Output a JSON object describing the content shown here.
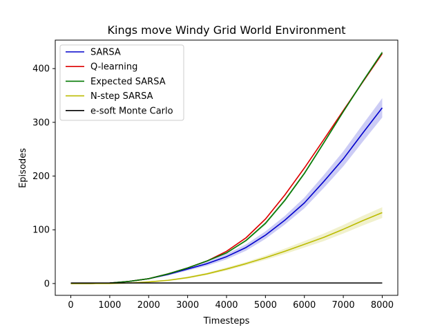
{
  "chart_data": {
    "type": "line",
    "title": "Kings move Windy Grid World Environment",
    "xlabel": "Timesteps",
    "ylabel": "Episodes",
    "xlim": [
      -400,
      8400
    ],
    "ylim": [
      -22,
      453
    ],
    "xticks": [
      0,
      1000,
      2000,
      3000,
      4000,
      5000,
      6000,
      7000,
      8000
    ],
    "yticks": [
      0,
      100,
      200,
      300,
      400
    ],
    "grid": false,
    "legend_position": "upper-left",
    "series": [
      {
        "name": "SARSA",
        "color": "#0000cc",
        "x": [
          0,
          500,
          1000,
          1500,
          2000,
          2500,
          3000,
          3500,
          4000,
          4500,
          5000,
          5500,
          6000,
          6500,
          7000,
          7500,
          8000
        ],
        "y": [
          0,
          0,
          1,
          4,
          9,
          17,
          27,
          37,
          50,
          67,
          90,
          118,
          150,
          190,
          232,
          280,
          327
        ],
        "band": [
          0,
          0,
          0,
          1,
          1,
          2,
          3,
          4,
          5,
          6,
          7,
          8,
          10,
          12,
          14,
          16,
          18
        ]
      },
      {
        "name": "Q-learning",
        "color": "#dd0000",
        "x": [
          0,
          500,
          1000,
          1500,
          2000,
          2500,
          3000,
          3500,
          4000,
          4500,
          5000,
          5500,
          6000,
          6500,
          7000,
          7500,
          8000
        ],
        "y": [
          0,
          0,
          1,
          4,
          9,
          18,
          29,
          42,
          60,
          85,
          120,
          165,
          215,
          268,
          322,
          375,
          428
        ],
        "band": [
          0,
          0,
          0,
          0,
          1,
          1,
          1,
          1,
          1,
          2,
          2,
          2,
          2,
          2,
          2,
          2,
          3
        ]
      },
      {
        "name": "Expected SARSA",
        "color": "#007700",
        "x": [
          0,
          500,
          1000,
          1500,
          2000,
          2500,
          3000,
          3500,
          4000,
          4500,
          5000,
          5500,
          6000,
          6500,
          7000,
          7500,
          8000
        ],
        "y": [
          0,
          0,
          1,
          4,
          9,
          18,
          29,
          42,
          57,
          80,
          112,
          155,
          205,
          262,
          320,
          376,
          430
        ],
        "band": [
          0,
          0,
          0,
          0,
          1,
          1,
          1,
          1,
          2,
          2,
          3,
          3,
          3,
          3,
          3,
          3,
          3
        ]
      },
      {
        "name": "N-step SARSA",
        "color": "#bbbb00",
        "x": [
          0,
          500,
          1000,
          1500,
          2000,
          2500,
          3000,
          3500,
          4000,
          4500,
          5000,
          5500,
          6000,
          6500,
          7000,
          7500,
          8000
        ],
        "y": [
          0,
          0,
          0,
          1,
          3,
          6,
          11,
          18,
          27,
          37,
          48,
          60,
          73,
          86,
          101,
          117,
          132
        ],
        "band": [
          0,
          0,
          0,
          0,
          1,
          1,
          2,
          2,
          3,
          3,
          4,
          5,
          6,
          7,
          8,
          9,
          10
        ]
      },
      {
        "name": "e-soft Monte Carlo",
        "color": "#000000",
        "x": [
          0,
          500,
          1000,
          1500,
          2000,
          2500,
          3000,
          3500,
          4000,
          4500,
          5000,
          5500,
          6000,
          6500,
          7000,
          7500,
          8000
        ],
        "y": [
          1,
          1,
          1,
          1,
          1,
          1,
          1,
          1,
          1,
          1,
          1,
          1,
          1,
          1,
          1,
          1,
          1
        ],
        "band": [
          0,
          0,
          0,
          0,
          0,
          0,
          0,
          0,
          0,
          0,
          0,
          0,
          0,
          0,
          0,
          0,
          0
        ]
      }
    ]
  }
}
